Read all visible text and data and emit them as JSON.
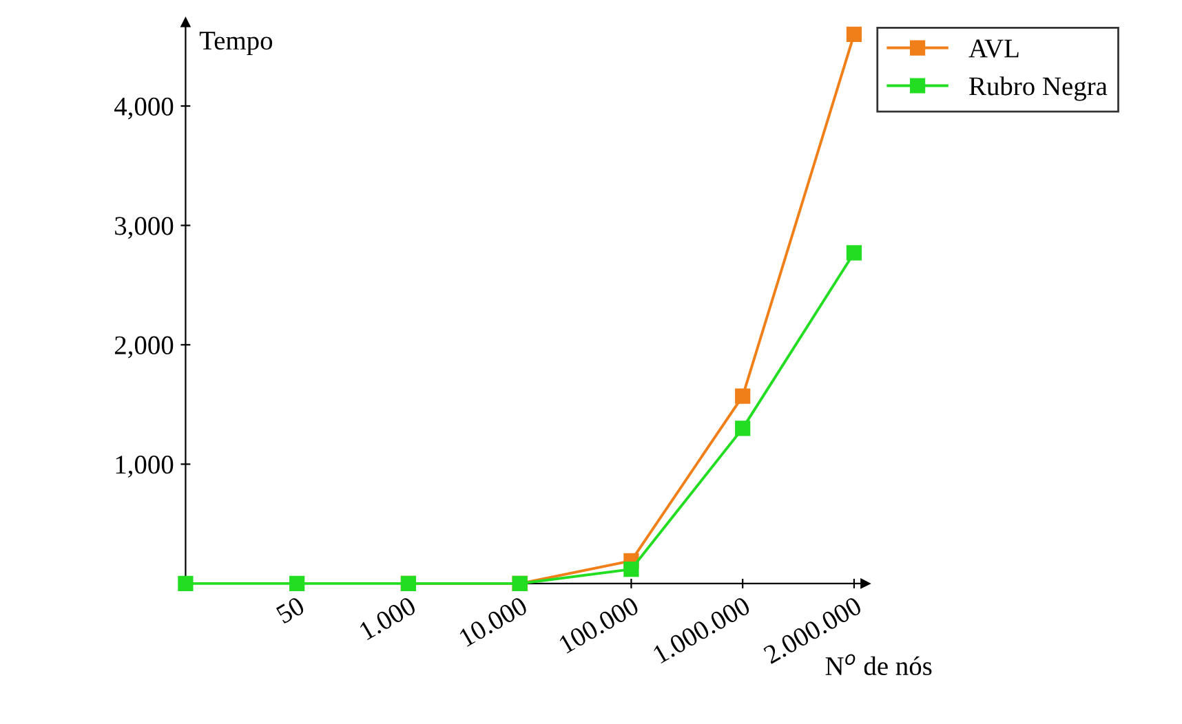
{
  "chart_data": {
    "type": "line",
    "categories": [
      null,
      "50",
      "1.000",
      "10.000",
      "100.000",
      "1.000.000",
      "2.000.000"
    ],
    "xlabel": "N$^{o}$ de nós",
    "ylabel": "Tempo",
    "series": [
      {
        "name": "AVL",
        "color": "#f07f1a",
        "values": [
          null,
          null,
          0,
          0,
          190,
          1570,
          4600
        ]
      },
      {
        "name": "Rubro Negra",
        "color": "#22dd22",
        "values": [
          0,
          0,
          0,
          0,
          120,
          1300,
          2770
        ]
      }
    ],
    "ylim": [
      0,
      4700
    ],
    "yticks": [
      {
        "value": 1000,
        "label": "1,000"
      },
      {
        "value": 2000,
        "label": "2,000"
      },
      {
        "value": 3000,
        "label": "3,000"
      },
      {
        "value": 4000,
        "label": "4,000"
      }
    ],
    "marker": "square",
    "line_style": "solid",
    "grid": false,
    "legend": "top right"
  }
}
